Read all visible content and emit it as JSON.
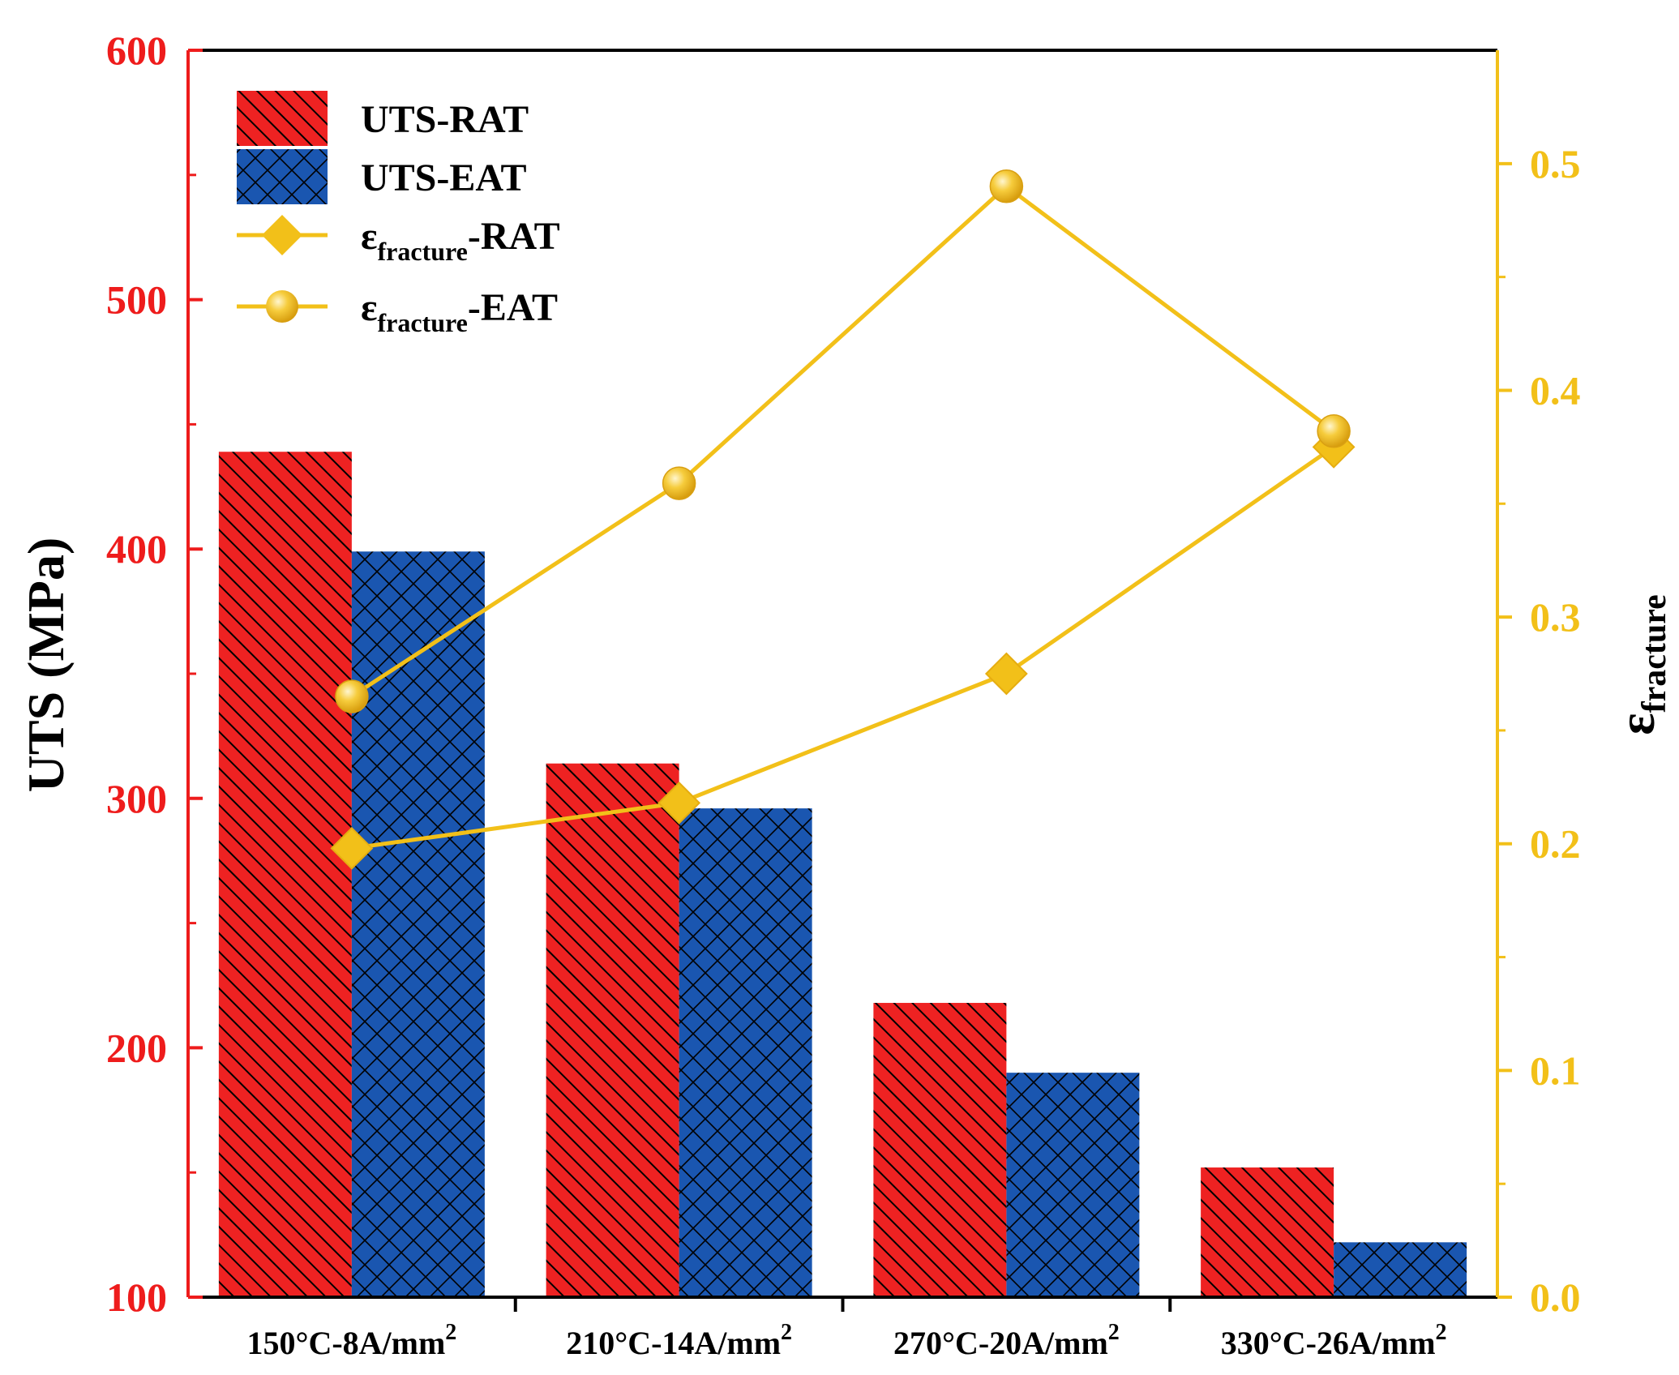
{
  "chart_data": {
    "type": "bar",
    "categories": [
      "150°C-8A/mm²",
      "210°C-14A/mm²",
      "270°C-20A/mm²",
      "330°C-26A/mm²"
    ],
    "series": [
      {
        "name": "UTS-RAT",
        "kind": "bar",
        "axis": "left",
        "values": [
          439,
          314,
          218,
          152
        ]
      },
      {
        "name": "UTS-EAT",
        "kind": "bar",
        "axis": "left",
        "values": [
          399,
          296,
          190,
          122
        ]
      },
      {
        "name_main": "ε",
        "name_sub": "fracture",
        "name_suffix": "-RAT",
        "kind": "line",
        "marker": "diamond",
        "axis": "right",
        "values": [
          0.198,
          0.218,
          0.275,
          0.375
        ]
      },
      {
        "name_main": "ε",
        "name_sub": "fracture",
        "name_suffix": "-EAT",
        "kind": "line",
        "marker": "circle",
        "axis": "right",
        "values": [
          0.265,
          0.359,
          0.49,
          0.382
        ]
      }
    ],
    "ylabel": "UTS (MPa)",
    "ylabel_right_main": "ε",
    "ylabel_right_sub": "fracture",
    "ylim": [
      100,
      600
    ],
    "yticks": [
      100,
      200,
      300,
      400,
      500,
      600
    ],
    "ylim_right": [
      0.0,
      0.55
    ],
    "yticks_right": [
      "0.0",
      "0.1",
      "0.2",
      "0.3",
      "0.4",
      "0.5"
    ],
    "legend_position": "top-left",
    "grid": false,
    "colors": {
      "rat_bar": "#ee2222",
      "eat_bar": "#1a56b0",
      "line": "#f2c019",
      "left_axis": "#ee1c1c",
      "right_axis": "#f2c019"
    }
  }
}
